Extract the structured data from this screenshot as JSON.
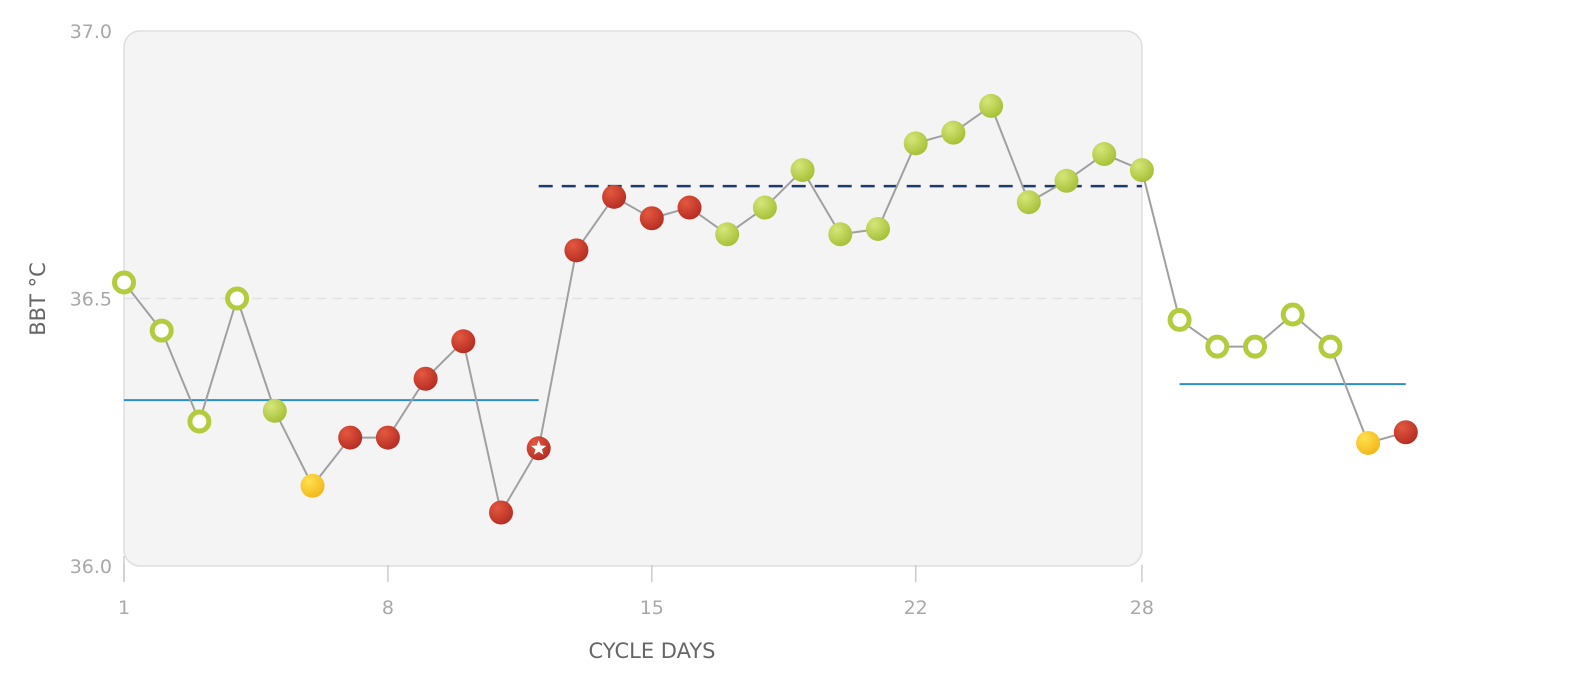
{
  "chart_data": {
    "type": "line",
    "xlabel": "CYCLE DAYS",
    "ylabel": "BBT °C",
    "x_ticks": [
      1,
      8,
      15,
      22,
      28
    ],
    "y_ticks": [
      "36.0",
      "36.5",
      "37.0"
    ],
    "ylim": [
      36.0,
      37.0
    ],
    "xlim": [
      1,
      36
    ],
    "grid": "dashed line at 36.5",
    "shaded_region": {
      "x_from": 1,
      "x_to": 28
    },
    "colors": {
      "line": "#a0a0a0",
      "green": "#b2cc3e",
      "red": "#c9362a",
      "yellow": "#f6c425",
      "coverline": "#2a8fc6",
      "high_temp_line": "#1d3b6b",
      "panel": "#f4f4f4",
      "panel_border": "#dedede"
    },
    "points": [
      {
        "day": 1,
        "value": 36.53,
        "marker": "ring-green"
      },
      {
        "day": 2,
        "value": 36.44,
        "marker": "ring-green"
      },
      {
        "day": 3,
        "value": 36.27,
        "marker": "ring-green"
      },
      {
        "day": 4,
        "value": 36.5,
        "marker": "ring-green"
      },
      {
        "day": 5,
        "value": 36.29,
        "marker": "dot-green"
      },
      {
        "day": 6,
        "value": 36.15,
        "marker": "dot-yellow"
      },
      {
        "day": 7,
        "value": 36.24,
        "marker": "dot-red"
      },
      {
        "day": 8,
        "value": 36.24,
        "marker": "dot-red"
      },
      {
        "day": 9,
        "value": 36.35,
        "marker": "dot-red"
      },
      {
        "day": 10,
        "value": 36.42,
        "marker": "dot-red"
      },
      {
        "day": 11,
        "value": 36.1,
        "marker": "dot-red"
      },
      {
        "day": 12,
        "value": 36.22,
        "marker": "star-red"
      },
      {
        "day": 13,
        "value": 36.59,
        "marker": "dot-red"
      },
      {
        "day": 14,
        "value": 36.69,
        "marker": "dot-red"
      },
      {
        "day": 15,
        "value": 36.65,
        "marker": "dot-red"
      },
      {
        "day": 16,
        "value": 36.67,
        "marker": "dot-red"
      },
      {
        "day": 17,
        "value": 36.62,
        "marker": "dot-green"
      },
      {
        "day": 18,
        "value": 36.67,
        "marker": "dot-green"
      },
      {
        "day": 19,
        "value": 36.74,
        "marker": "dot-green"
      },
      {
        "day": 20,
        "value": 36.62,
        "marker": "dot-green"
      },
      {
        "day": 21,
        "value": 36.63,
        "marker": "dot-green"
      },
      {
        "day": 22,
        "value": 36.79,
        "marker": "dot-green"
      },
      {
        "day": 23,
        "value": 36.81,
        "marker": "dot-green"
      },
      {
        "day": 24,
        "value": 36.86,
        "marker": "dot-green"
      },
      {
        "day": 25,
        "value": 36.68,
        "marker": "dot-green"
      },
      {
        "day": 26,
        "value": 36.72,
        "marker": "dot-green"
      },
      {
        "day": 27,
        "value": 36.77,
        "marker": "dot-green"
      },
      {
        "day": 28,
        "value": 36.74,
        "marker": "dot-green"
      },
      {
        "day": 29,
        "value": 36.46,
        "marker": "ring-green"
      },
      {
        "day": 30,
        "value": 36.41,
        "marker": "ring-green"
      },
      {
        "day": 31,
        "value": 36.41,
        "marker": "ring-green"
      },
      {
        "day": 32,
        "value": 36.47,
        "marker": "ring-green"
      },
      {
        "day": 33,
        "value": 36.41,
        "marker": "ring-green"
      },
      {
        "day": 34,
        "value": 36.23,
        "marker": "dot-yellow"
      },
      {
        "day": 35,
        "value": 36.25,
        "marker": "dot-red"
      }
    ],
    "reference_lines": [
      {
        "kind": "coverline",
        "x_from": 1,
        "x_to": 12,
        "value": 36.31,
        "style": "solid"
      },
      {
        "kind": "high-temp",
        "x_from": 12,
        "x_to": 28,
        "value": 36.71,
        "style": "dashed"
      },
      {
        "kind": "coverline",
        "x_from": 29,
        "x_to": 35,
        "value": 36.34,
        "style": "solid"
      }
    ]
  }
}
